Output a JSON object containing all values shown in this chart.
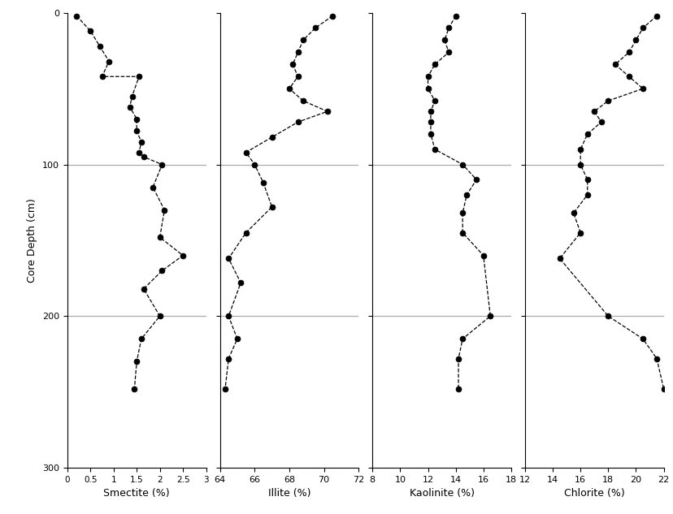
{
  "smectite_depths": [
    2,
    12,
    22,
    32,
    42,
    42,
    55,
    62,
    70,
    78,
    85,
    92,
    95,
    100,
    115,
    130,
    148,
    160,
    170,
    182,
    200,
    215,
    230,
    248
  ],
  "smectite_vals": [
    0.2,
    0.5,
    0.7,
    0.9,
    0.75,
    1.55,
    1.4,
    1.35,
    1.5,
    1.5,
    1.6,
    1.55,
    1.65,
    2.05,
    1.85,
    2.1,
    2.0,
    2.5,
    2.05,
    1.65,
    2.0,
    1.6,
    1.5,
    1.45
  ],
  "illite_depths": [
    2,
    10,
    18,
    26,
    34,
    42,
    50,
    58,
    65,
    72,
    82,
    92,
    100,
    112,
    128,
    145,
    162,
    178,
    200,
    215,
    228,
    248
  ],
  "illite_vals": [
    70.5,
    69.5,
    68.8,
    68.5,
    68.2,
    68.5,
    68.0,
    68.8,
    70.2,
    68.5,
    67.0,
    65.5,
    66.0,
    66.5,
    67.0,
    65.5,
    64.5,
    65.2,
    64.5,
    65.0,
    64.5,
    64.3
  ],
  "kaolinite_depths": [
    2,
    10,
    18,
    26,
    34,
    42,
    50,
    58,
    65,
    72,
    80,
    90,
    100,
    110,
    120,
    132,
    145,
    160,
    200,
    215,
    228,
    248
  ],
  "kaolinite_vals": [
    14.0,
    13.5,
    13.2,
    13.5,
    12.5,
    12.0,
    12.0,
    12.5,
    12.2,
    12.2,
    12.2,
    12.5,
    14.5,
    15.5,
    14.8,
    14.5,
    14.5,
    16.0,
    16.5,
    14.5,
    14.2,
    14.2
  ],
  "chlorite_depths": [
    2,
    10,
    18,
    26,
    34,
    42,
    50,
    58,
    65,
    72,
    80,
    90,
    100,
    110,
    120,
    132,
    145,
    162,
    200,
    215,
    228,
    248
  ],
  "chlorite_vals": [
    21.5,
    20.5,
    20.0,
    19.5,
    18.5,
    19.5,
    20.5,
    18.0,
    17.0,
    17.5,
    16.5,
    16.0,
    16.0,
    16.5,
    16.5,
    15.5,
    16.0,
    14.5,
    18.0,
    20.5,
    21.5,
    22.0
  ],
  "smectite_xlim": [
    0,
    3
  ],
  "smectite_xticks": [
    0,
    0.5,
    1,
    1.5,
    2,
    2.5,
    3
  ],
  "illite_xlim": [
    64,
    72
  ],
  "illite_xticks": [
    64,
    66,
    68,
    70,
    72
  ],
  "kaolinite_xlim": [
    8,
    18
  ],
  "kaolinite_xticks": [
    8,
    10,
    12,
    14,
    16,
    18
  ],
  "chlorite_xlim": [
    12,
    22
  ],
  "chlorite_xticks": [
    12,
    14,
    16,
    18,
    20,
    22
  ],
  "ylim": [
    300,
    0
  ],
  "yticks": [
    0,
    100,
    200,
    300
  ],
  "ylabel": "Core Depth (cm)",
  "xlabels": [
    "Smectite (%)",
    "Illite (%)",
    "Kaolinite (%)",
    "Chlorite (%)"
  ],
  "hline_depths": [
    100,
    200
  ],
  "marker": "o",
  "markersize": 5,
  "linestyle": "--",
  "linecolor": "black",
  "markercolor": "black",
  "background_color": "white",
  "hline_color": "#aaaaaa",
  "hline_lw": 0.9
}
